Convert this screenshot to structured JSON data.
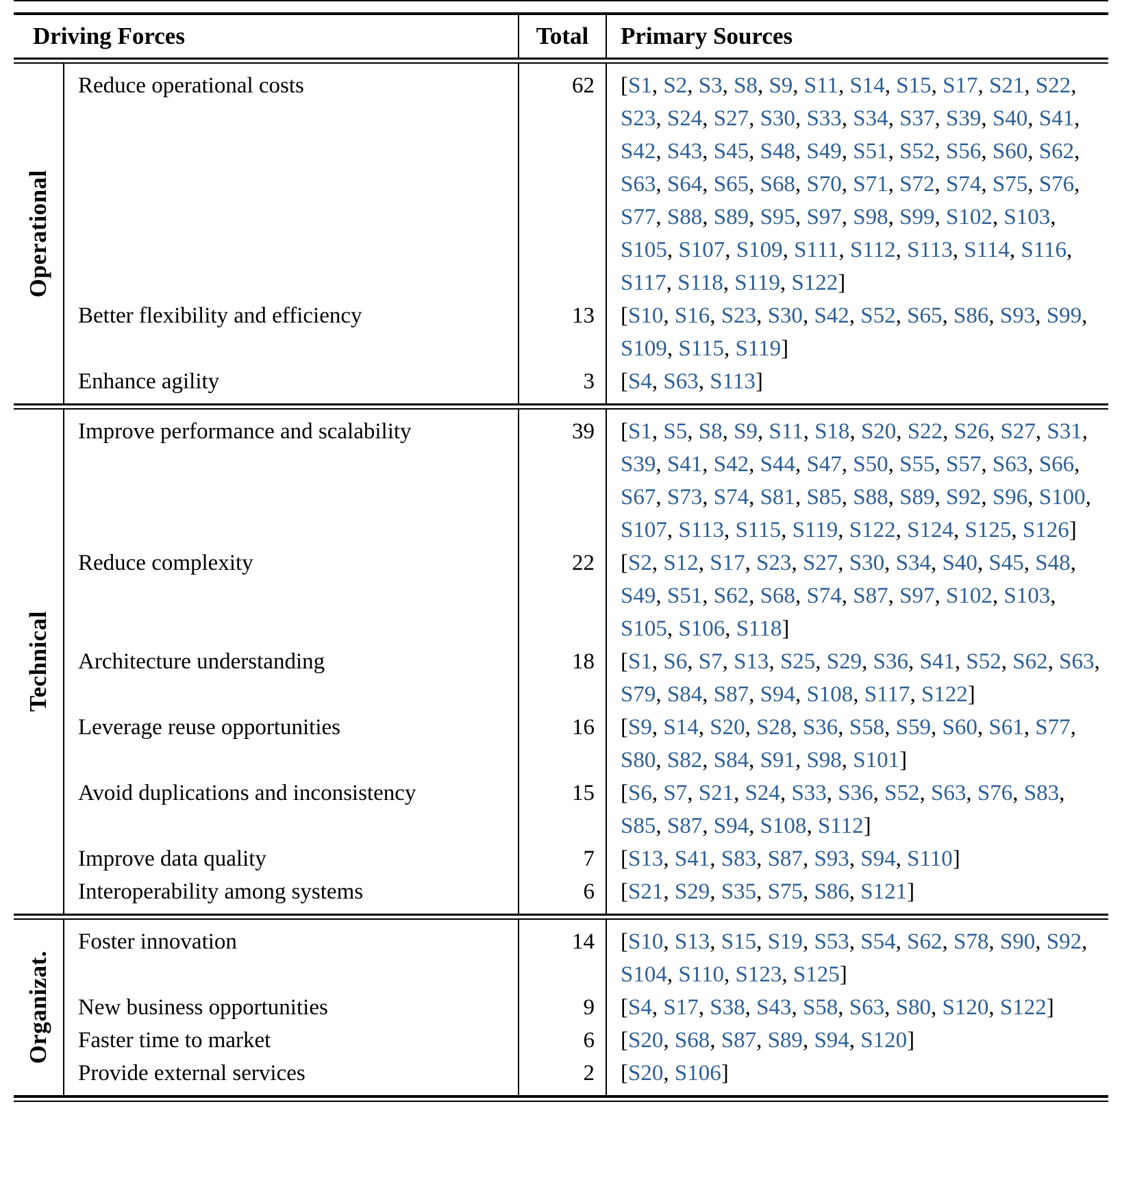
{
  "header": {
    "driving_forces": "Driving Forces",
    "total": "Total",
    "primary_sources": "Primary Sources"
  },
  "colors": {
    "source_link_blue": "#2d5f96",
    "text": "#000000",
    "rule": "#000000"
  },
  "sections": [
    {
      "group": "Operational",
      "rows": [
        {
          "force": "Reduce operational costs",
          "total": "62",
          "sources": [
            "S1",
            "S2",
            "S3",
            "S8",
            "S9",
            "S11",
            "S14",
            "S15",
            "S17",
            "S21",
            "S22",
            "S23",
            "S24",
            "S27",
            "S30",
            "S33",
            "S34",
            "S37",
            "S39",
            "S40",
            "S41",
            "S42",
            "S43",
            "S45",
            "S48",
            "S49",
            "S51",
            "S52",
            "S56",
            "S60",
            "S62",
            "S63",
            "S64",
            "S65",
            "S68",
            "S70",
            "S71",
            "S72",
            "S74",
            "S75",
            "S76",
            "S77",
            "S88",
            "S89",
            "S95",
            "S97",
            "S98",
            "S99",
            "S102",
            "S103",
            "S105",
            "S107",
            "S109",
            "S111",
            "S112",
            "S113",
            "S114",
            "S116",
            "S117",
            "S118",
            "S119",
            "S122"
          ]
        },
        {
          "force": "Better flexibility and efficiency",
          "total": "13",
          "sources": [
            "S10",
            "S16",
            "S23",
            "S30",
            "S42",
            "S52",
            "S65",
            "S86",
            "S93",
            "S99",
            "S109",
            "S115",
            "S119"
          ]
        },
        {
          "force": "Enhance agility",
          "total": "3",
          "sources": [
            "S4",
            "S63",
            "S113"
          ]
        }
      ]
    },
    {
      "group": "Technical",
      "rows": [
        {
          "force": "Improve performance and scalability",
          "total": "39",
          "sources": [
            "S1",
            "S5",
            "S8",
            "S9",
            "S11",
            "S18",
            "S20",
            "S22",
            "S26",
            "S27",
            "S31",
            "S39",
            "S41",
            "S42",
            "S44",
            "S47",
            "S50",
            "S55",
            "S57",
            "S63",
            "S66",
            "S67",
            "S73",
            "S74",
            "S81",
            "S85",
            "S88",
            "S89",
            "S92",
            "S96",
            "S100",
            "S107",
            "S113",
            "S115",
            "S119",
            "S122",
            "S124",
            "S125",
            "S126"
          ]
        },
        {
          "force": "Reduce complexity",
          "total": "22",
          "sources": [
            "S2",
            "S12",
            "S17",
            "S23",
            "S27",
            "S30",
            "S34",
            "S40",
            "S45",
            "S48",
            "S49",
            "S51",
            "S62",
            "S68",
            "S74",
            "S87",
            "S97",
            "S102",
            "S103",
            "S105",
            "S106",
            "S118"
          ]
        },
        {
          "force": "Architecture understanding",
          "total": "18",
          "sources": [
            "S1",
            "S6",
            "S7",
            "S13",
            "S25",
            "S29",
            "S36",
            "S41",
            "S52",
            "S62",
            "S63",
            "S79",
            "S84",
            "S87",
            "S94",
            "S108",
            "S117",
            "S122"
          ]
        },
        {
          "force": "Leverage reuse opportunities",
          "total": "16",
          "sources": [
            "S9",
            "S14",
            "S20",
            "S28",
            "S36",
            "S58",
            "S59",
            "S60",
            "S61",
            "S77",
            "S80",
            "S82",
            "S84",
            "S91",
            "S98",
            "S101"
          ]
        },
        {
          "force": "Avoid duplications and inconsistency",
          "total": "15",
          "sources": [
            "S6",
            "S7",
            "S21",
            "S24",
            "S33",
            "S36",
            "S52",
            "S63",
            "S76",
            "S83",
            "S85",
            "S87",
            "S94",
            "S108",
            "S112"
          ]
        },
        {
          "force": "Improve data quality",
          "total": "7",
          "sources": [
            "S13",
            "S41",
            "S83",
            "S87",
            "S93",
            "S94",
            "S110"
          ]
        },
        {
          "force": "Interoperability among systems",
          "total": "6",
          "sources": [
            "S21",
            "S29",
            "S35",
            "S75",
            "S86",
            "S121"
          ]
        }
      ]
    },
    {
      "group": "Organizat.",
      "rows": [
        {
          "force": "Foster innovation",
          "total": "14",
          "sources": [
            "S10",
            "S13",
            "S15",
            "S19",
            "S53",
            "S54",
            "S62",
            "S78",
            "S90",
            "S92",
            "S104",
            "S110",
            "S123",
            "S125"
          ]
        },
        {
          "force": "New business opportunities",
          "total": "9",
          "sources": [
            "S4",
            "S17",
            "S38",
            "S43",
            "S58",
            "S63",
            "S80",
            "S120",
            "S122"
          ]
        },
        {
          "force": "Faster time to market",
          "total": "6",
          "sources": [
            "S20",
            "S68",
            "S87",
            "S89",
            "S94",
            "S120"
          ]
        },
        {
          "force": "Provide external services",
          "total": "2",
          "sources": [
            "S20",
            "S106"
          ]
        }
      ]
    }
  ]
}
